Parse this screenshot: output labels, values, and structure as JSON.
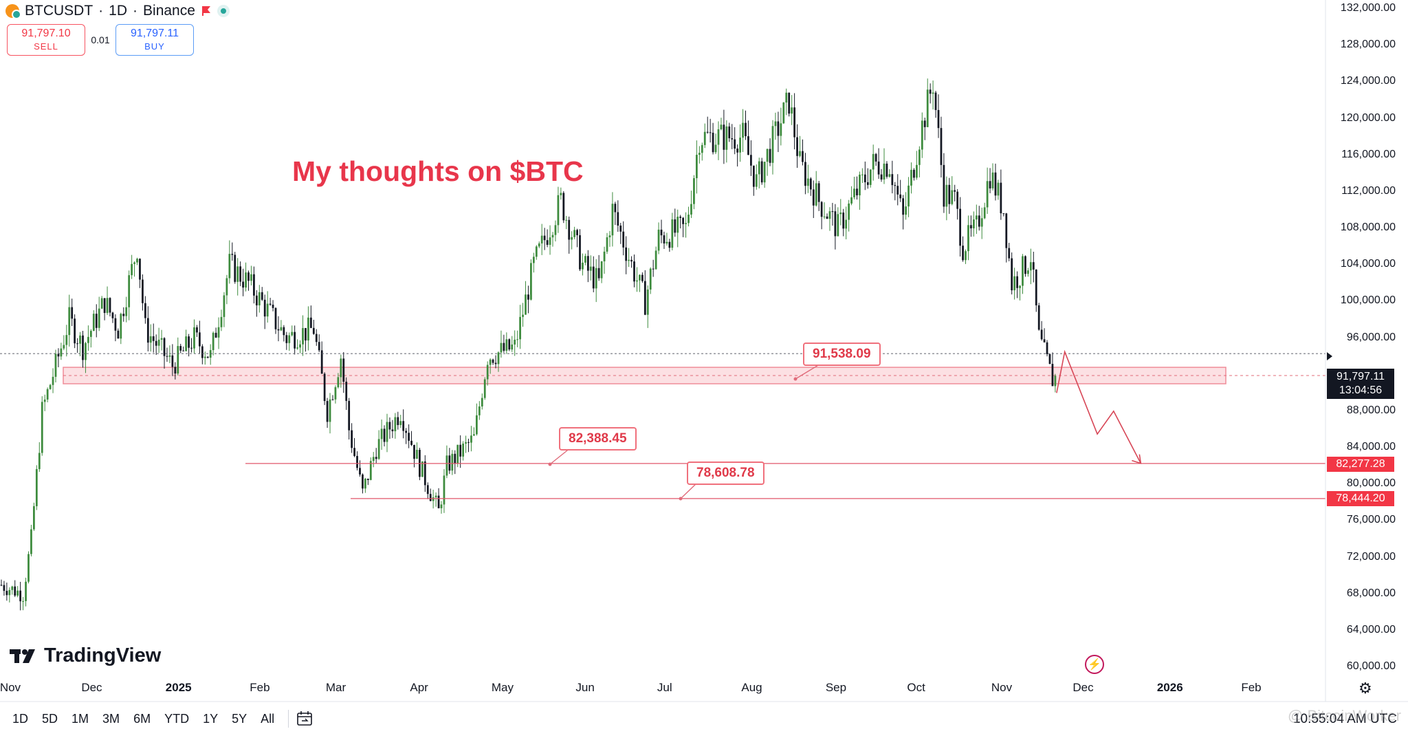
{
  "header": {
    "symbol": "BTCUSDT",
    "interval": "1D",
    "exchange": "Binance",
    "separator": "·"
  },
  "trade": {
    "sell_price": "91,797.10",
    "sell_label": "SELL",
    "spread": "0.01",
    "buy_price": "91,797.11",
    "buy_label": "BUY"
  },
  "annotation": {
    "title": "My thoughts on $BTC",
    "callouts": [
      "91,538.09",
      "82,388.45",
      "78,608.78"
    ]
  },
  "price_axis": {
    "labels": [
      "132,000.00",
      "128,000.00",
      "124,000.00",
      "120,000.00",
      "116,000.00",
      "112,000.00",
      "108,000.00",
      "104,000.00",
      "100,000.00",
      "96,000.00",
      "88,000.00",
      "84,000.00",
      "80,000.00",
      "76,000.00",
      "72,000.00",
      "68,000.00",
      "64,000.00",
      "60,000.00"
    ],
    "current_price": "91,797.11",
    "countdown": "13:04:56",
    "level_tags": [
      "82,277.28",
      "78,444.20"
    ]
  },
  "time_axis": {
    "labels": [
      "Nov",
      "Dec",
      "2025",
      "Feb",
      "Mar",
      "Apr",
      "May",
      "Jun",
      "Jul",
      "Aug",
      "Sep",
      "Oct",
      "Nov",
      "Dec",
      "2026",
      "Feb"
    ],
    "bold": [
      "2025",
      "2026"
    ]
  },
  "bottom_bar": {
    "ranges": [
      "1D",
      "5D",
      "1M",
      "3M",
      "6M",
      "YTD",
      "1Y",
      "5Y",
      "All"
    ],
    "time": "10:55:04 AM UTC",
    "watermark": "@ BitcoinWorker"
  },
  "logo": {
    "text": "TradingView"
  },
  "colors": {
    "up": "#3d8b3d",
    "down": "#131722",
    "zone_fill": "#fbd5da",
    "zone_border": "#f08c98",
    "accent_red": "#e8364b",
    "tag_red": "#f23645",
    "tag_dark": "#131722"
  },
  "chart_data": {
    "type": "candlestick",
    "x_start": "2024-10-28",
    "x_end": "2026-02-28",
    "y_range": [
      60000,
      132000
    ],
    "close_series": [
      [
        "2024-10-28",
        69000
      ],
      [
        "2024-11-05",
        68000
      ],
      [
        "2024-11-08",
        74000
      ],
      [
        "2024-11-12",
        88000
      ],
      [
        "2024-11-22",
        98000
      ],
      [
        "2024-11-27",
        95000
      ],
      [
        "2024-12-05",
        100000
      ],
      [
        "2024-12-10",
        97000
      ],
      [
        "2024-12-17",
        106000
      ],
      [
        "2024-12-20",
        97000
      ],
      [
        "2024-12-30",
        93000
      ],
      [
        "2025-01-07",
        96000
      ],
      [
        "2025-01-13",
        94000
      ],
      [
        "2025-01-20",
        104000
      ],
      [
        "2025-01-27",
        102000
      ],
      [
        "2025-02-03",
        99000
      ],
      [
        "2025-02-10",
        96000
      ],
      [
        "2025-02-20",
        97000
      ],
      [
        "2025-02-25",
        88000
      ],
      [
        "2025-03-02",
        94000
      ],
      [
        "2025-03-05",
        86000
      ],
      [
        "2025-03-10",
        79000
      ],
      [
        "2025-03-15",
        84000
      ],
      [
        "2025-03-24",
        88000
      ],
      [
        "2025-03-31",
        82000
      ],
      [
        "2025-04-07",
        77000
      ],
      [
        "2025-04-10",
        82000
      ],
      [
        "2025-04-20",
        85000
      ],
      [
        "2025-04-25",
        94000
      ],
      [
        "2025-05-05",
        95000
      ],
      [
        "2025-05-12",
        104000
      ],
      [
        "2025-05-22",
        111000
      ],
      [
        "2025-05-30",
        104000
      ],
      [
        "2025-06-05",
        102000
      ],
      [
        "2025-06-10",
        110000
      ],
      [
        "2025-06-17",
        104000
      ],
      [
        "2025-06-22",
        100000
      ],
      [
        "2025-06-27",
        107000
      ],
      [
        "2025-07-07",
        108000
      ],
      [
        "2025-07-12",
        118000
      ],
      [
        "2025-07-20",
        118000
      ],
      [
        "2025-07-28",
        118000
      ],
      [
        "2025-08-02",
        113000
      ],
      [
        "2025-08-10",
        119000
      ],
      [
        "2025-08-14",
        122000
      ],
      [
        "2025-08-18",
        115000
      ],
      [
        "2025-08-25",
        111000
      ],
      [
        "2025-09-01",
        108000
      ],
      [
        "2025-09-08",
        112000
      ],
      [
        "2025-09-14",
        115000
      ],
      [
        "2025-09-20",
        115000
      ],
      [
        "2025-09-25",
        109000
      ],
      [
        "2025-10-01",
        118000
      ],
      [
        "2025-10-06",
        124000
      ],
      [
        "2025-10-10",
        112000
      ],
      [
        "2025-10-14",
        111000
      ],
      [
        "2025-10-17",
        106000
      ],
      [
        "2025-10-22",
        108000
      ],
      [
        "2025-10-27",
        114000
      ],
      [
        "2025-11-01",
        110000
      ],
      [
        "2025-11-04",
        102000
      ],
      [
        "2025-11-07",
        103000
      ],
      [
        "2025-11-11",
        105000
      ],
      [
        "2025-11-14",
        96000
      ],
      [
        "2025-11-19",
        91500
      ],
      [
        "2025-11-21",
        91797
      ]
    ],
    "levels": [
      {
        "label": "82,388.45",
        "price": 82388.45
      },
      {
        "label": "78,608.78",
        "price": 78608.78
      }
    ],
    "zone": {
      "label": "91,538.09",
      "low": 91000,
      "high": 92800
    },
    "projection": [
      [
        "2025-11-21",
        90000
      ],
      [
        "2025-11-24",
        94500
      ],
      [
        "2025-12-06",
        85500
      ],
      [
        "2025-12-12",
        88000
      ],
      [
        "2025-12-22",
        82300
      ]
    ]
  }
}
